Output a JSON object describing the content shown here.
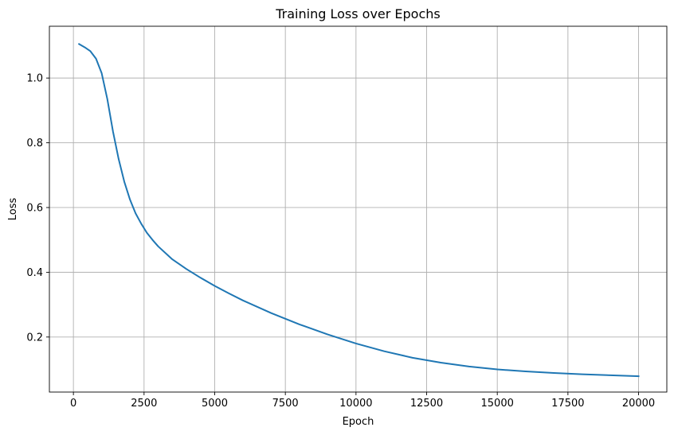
{
  "chart_data": {
    "type": "line",
    "title": "Training Loss over Epochs",
    "xlabel": "Epoch",
    "ylabel": "Loss",
    "xlim": [
      -850,
      21000
    ],
    "ylim": [
      0.03,
      1.16
    ],
    "grid": true,
    "xticks": [
      0,
      2500,
      5000,
      7500,
      10000,
      12500,
      15000,
      17500,
      20000
    ],
    "xtick_labels": [
      "0",
      "2500",
      "5000",
      "7500",
      "10000",
      "12500",
      "15000",
      "17500",
      "20000"
    ],
    "yticks": [
      0.2,
      0.4,
      0.6,
      0.8,
      1.0
    ],
    "ytick_labels": [
      "0.2",
      "0.4",
      "0.6",
      "0.8",
      "1.0"
    ],
    "series": [
      {
        "color": "#1f77b4",
        "x": [
          200,
          400,
          600,
          800,
          1000,
          1200,
          1400,
          1600,
          1800,
          2000,
          2200,
          2400,
          2600,
          2800,
          3000,
          3500,
          4000,
          4500,
          5000,
          5500,
          6000,
          7000,
          8000,
          9000,
          10000,
          11000,
          12000,
          13000,
          14000,
          15000,
          16000,
          17000,
          18000,
          19000,
          20000
        ],
        "y": [
          1.105,
          1.095,
          1.083,
          1.06,
          1.015,
          0.935,
          0.835,
          0.75,
          0.68,
          0.625,
          0.582,
          0.55,
          0.522,
          0.5,
          0.48,
          0.44,
          0.41,
          0.383,
          0.358,
          0.335,
          0.313,
          0.274,
          0.239,
          0.208,
          0.18,
          0.156,
          0.136,
          0.121,
          0.109,
          0.1,
          0.094,
          0.089,
          0.085,
          0.082,
          0.079
        ]
      }
    ]
  }
}
